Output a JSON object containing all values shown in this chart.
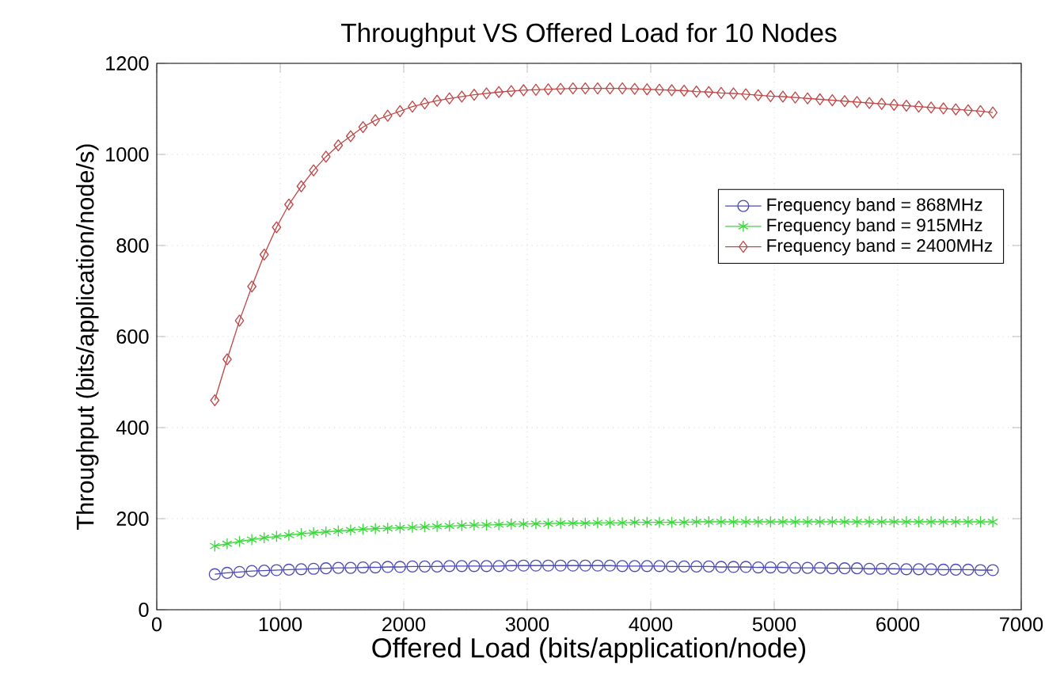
{
  "chart_data": {
    "type": "line",
    "title": "Throughput VS Offered Load for 10 Nodes",
    "xlabel": "Offered Load (bits/application/node)",
    "ylabel": "Throughput (bits/application/node/s)",
    "x": [
      470,
      570,
      670,
      770,
      870,
      970,
      1070,
      1170,
      1270,
      1370,
      1470,
      1570,
      1670,
      1770,
      1870,
      1970,
      2070,
      2170,
      2270,
      2370,
      2470,
      2570,
      2670,
      2770,
      2870,
      2970,
      3070,
      3170,
      3270,
      3370,
      3470,
      3570,
      3670,
      3770,
      3870,
      3970,
      4070,
      4170,
      4270,
      4370,
      4470,
      4570,
      4670,
      4770,
      4870,
      4970,
      5070,
      5170,
      5270,
      5370,
      5470,
      5570,
      5670,
      5770,
      5870,
      5970,
      6070,
      6170,
      6270,
      6370,
      6470,
      6570,
      6670,
      6770
    ],
    "series": [
      {
        "name": "Frequency band = 868MHz",
        "color": "#4a4ab4",
        "marker": "circle",
        "values": [
          78,
          81,
          83,
          85,
          86,
          87,
          88,
          89,
          90,
          91,
          92,
          92,
          93,
          93,
          94,
          94,
          95,
          95,
          95,
          96,
          96,
          96,
          96,
          96,
          97,
          97,
          97,
          97,
          97,
          97,
          97,
          97,
          97,
          96,
          96,
          96,
          96,
          95,
          95,
          95,
          95,
          94,
          94,
          94,
          93,
          93,
          93,
          92,
          92,
          92,
          91,
          91,
          91,
          90,
          90,
          90,
          89,
          89,
          89,
          88,
          88,
          88,
          87,
          87
        ]
      },
      {
        "name": "Frequency band = 915MHz",
        "color": "#3ad83a",
        "marker": "cross",
        "values": [
          140,
          145,
          150,
          154,
          158,
          161,
          164,
          167,
          169,
          171,
          173,
          175,
          177,
          178,
          179,
          180,
          181,
          182,
          183,
          184,
          185,
          186,
          186,
          187,
          188,
          188,
          189,
          189,
          190,
          190,
          190,
          191,
          191,
          191,
          192,
          192,
          192,
          192,
          192,
          193,
          193,
          193,
          193,
          193,
          193,
          193,
          193,
          193,
          193,
          193,
          193,
          193,
          193,
          193,
          193,
          193,
          193,
          193,
          193,
          193,
          193,
          193,
          193,
          193
        ]
      },
      {
        "name": "Frequency band = 2400MHz",
        "color": "#c04848",
        "marker": "diamond",
        "values": [
          460,
          550,
          635,
          710,
          780,
          840,
          890,
          930,
          965,
          995,
          1020,
          1040,
          1060,
          1075,
          1085,
          1095,
          1105,
          1112,
          1118,
          1123,
          1127,
          1131,
          1134,
          1137,
          1139,
          1141,
          1142,
          1143,
          1144,
          1145,
          1145,
          1145,
          1145,
          1145,
          1144,
          1143,
          1142,
          1141,
          1140,
          1138,
          1137,
          1135,
          1134,
          1132,
          1130,
          1128,
          1127,
          1125,
          1123,
          1121,
          1119,
          1117,
          1115,
          1113,
          1111,
          1109,
          1107,
          1105,
          1103,
          1101,
          1099,
          1097,
          1095,
          1092
        ]
      }
    ],
    "xlim": [
      0,
      7000
    ],
    "xticks": [
      0,
      1000,
      2000,
      3000,
      4000,
      5000,
      6000,
      7000
    ],
    "ylim": [
      0,
      1200
    ],
    "yticks": [
      0,
      200,
      400,
      600,
      800,
      1000,
      1200
    ],
    "grid": true,
    "legend": "right",
    "line_style": "solid"
  }
}
